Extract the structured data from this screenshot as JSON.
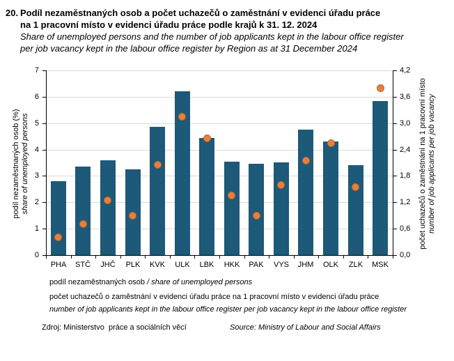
{
  "title": {
    "number": "20.",
    "cs_line1": "Podíl nezaměstnaných osob a počet uchazečů o zaměstnání v evidenci úřadu práce",
    "cs_line2": "na 1 pracovní místo v evidenci úřadu práce podle krajů k 31. 12. 2024",
    "en_line1": "Share of unemployed persons and the number of job applicants kept in the labour office register",
    "en_line2": "per job vacancy kept in the labour office register by Region as at 31 December 2024"
  },
  "chart_data": {
    "type": "bar",
    "categories": [
      "PHA",
      "STČ",
      "JHČ",
      "PLK",
      "KVK",
      "ULK",
      "LBK",
      "HKK",
      "PAK",
      "VYS",
      "JHM",
      "OLK",
      "ZLK",
      "MSK"
    ],
    "series": [
      {
        "name": "podíl nezaměstnaných osob / share of unemployed persons",
        "type": "bar",
        "axis": "left",
        "color": "#1d5978",
        "values": [
          2.8,
          3.35,
          3.6,
          3.25,
          4.85,
          6.2,
          4.45,
          3.55,
          3.45,
          3.5,
          4.75,
          4.3,
          3.4,
          5.85
        ]
      },
      {
        "name": "počet uchazečů o zaměstnání v evidenci úřadu práce na 1 pracovní místo v evidenci úřadu práce / number of job applicants kept in the labour office register per job vacancy kept in the labour office register",
        "type": "scatter",
        "axis": "right",
        "color": "#e5803e",
        "values": [
          0.4,
          0.7,
          1.25,
          0.9,
          2.05,
          3.15,
          2.65,
          1.35,
          0.9,
          1.6,
          2.15,
          2.55,
          1.55,
          3.8
        ]
      }
    ],
    "left_axis": {
      "label_cs": "podíl nezaměstnaných osob (%)",
      "label_en": "share of unemployed persons",
      "min": 0,
      "max": 7,
      "step": 1,
      "tick_labels": [
        "0",
        "1",
        "2",
        "3",
        "4",
        "5",
        "6",
        "7"
      ]
    },
    "right_axis": {
      "label_cs": "počet uchazečů o zaměstnání  na 1 pracovní místo",
      "label_en": "number of job applicants per job vacancy",
      "min": 0,
      "max": 4.2,
      "step": 0.6,
      "tick_labels": [
        "0,0",
        "0,6",
        "1,2",
        "1,8",
        "2,4",
        "3,0",
        "3,6",
        "4,2"
      ]
    },
    "grid": true,
    "legend_position": "bottom"
  },
  "legend": {
    "item1_cs": "podíl nezaměstnaných osob",
    "item1_en": "/ share of unemployed persons",
    "item2_cs": "počet uchazečů o zaměstnání v evidenci úřadu práce na 1 pracovní místo v evidenci úřadu práce",
    "item2_en": "number of job applicants kept in the labour office register per job vacancy kept in the labour office register"
  },
  "source": {
    "cs": "Zdroj: Ministerstvo  práce a sociálních věcí",
    "en": "Source: Ministry of Labour and Social Affairs"
  },
  "colors": {
    "bar": "#1d5978",
    "dot": "#e5803e",
    "dot_border": "#c06426",
    "grid": "#d9d9d9",
    "axis": "#000000"
  }
}
